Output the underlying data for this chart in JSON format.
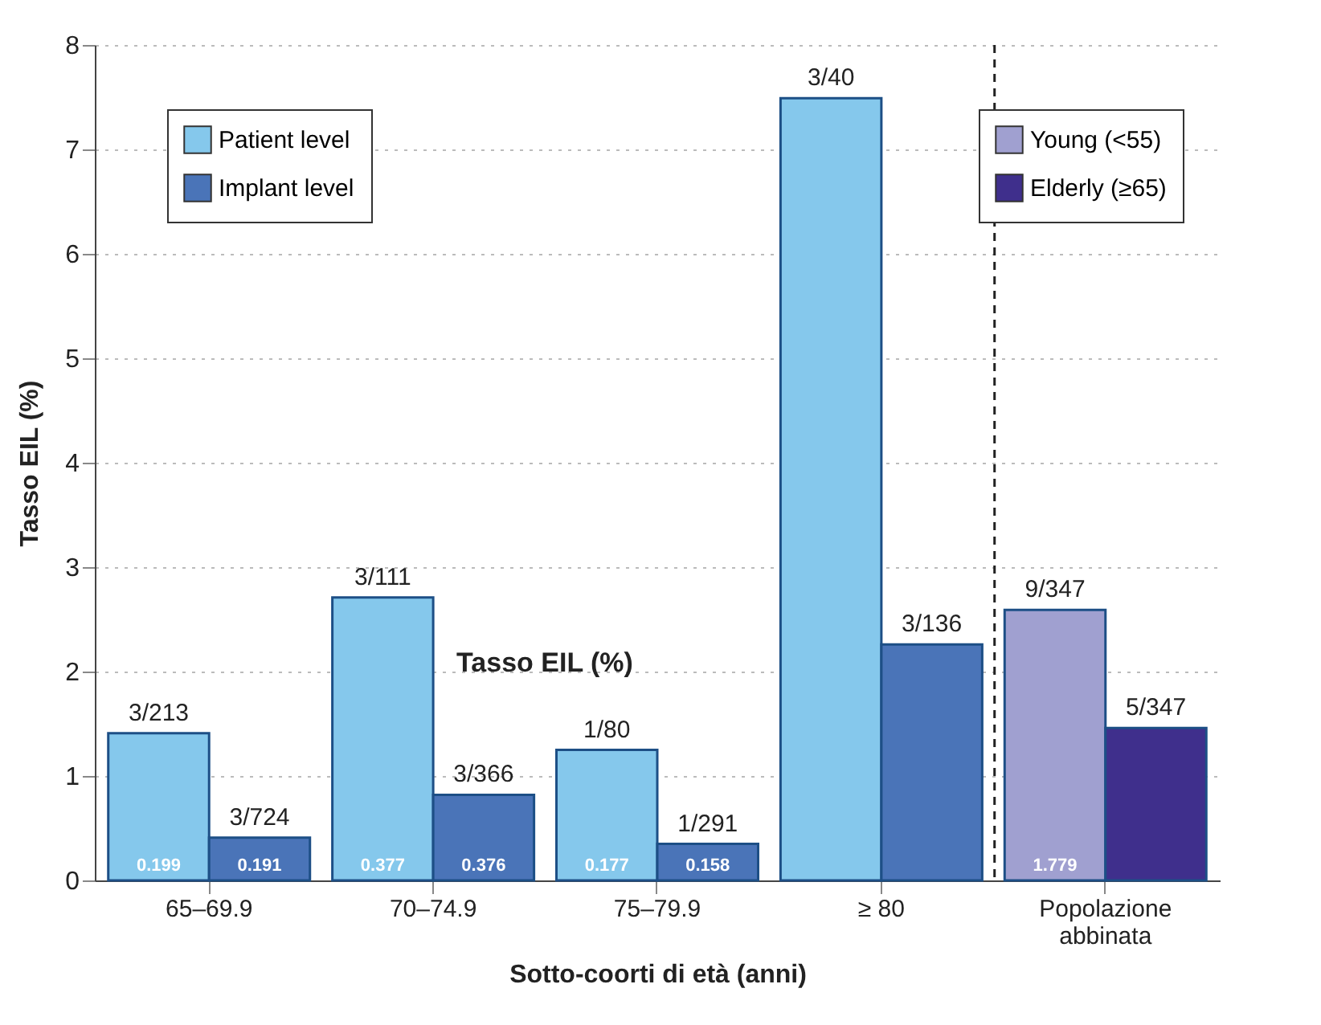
{
  "chart_data": {
    "type": "bar",
    "categories": [
      "65–69.9",
      "70–74.9",
      "75–79.9",
      "≥ 80",
      "Popolazione abbinata"
    ],
    "xlabel": "Sotto-coorti di età (anni)",
    "ylabel": "Tasso EIL (%)",
    "ylim": [
      0,
      8
    ],
    "yticks": [
      0,
      1,
      2,
      3,
      4,
      5,
      6,
      7,
      8
    ],
    "grid": "y",
    "legend": "top left",
    "series": [
      {
        "name": "Patient level",
        "color": "#85c8ec",
        "values": [
          1.41,
          2.71,
          1.25,
          7.49,
          null
        ],
        "value_labels": [
          "3/213",
          "3/111",
          "1/80",
          "3/40",
          null
        ]
      },
      {
        "name": "Implant level",
        "color": "#4a74b8",
        "values": [
          0.41,
          0.82,
          0.35,
          2.26,
          null
        ],
        "value_labels": [
          "3/724",
          "3/366",
          "1/291",
          "3/136",
          null
        ]
      },
      {
        "name": "Young (<55)",
        "color": "#a0a0d0",
        "values": [
          null,
          null,
          null,
          null,
          2.59
        ],
        "value_labels": [
          null,
          null,
          null,
          null,
          "9/347"
        ]
      },
      {
        "name": "Elderly (≥65)",
        "color": "#3f2f8c",
        "values": [
          null,
          null,
          null,
          null,
          1.46
        ],
        "value_labels": [
          null,
          null,
          null,
          null,
          "5/347"
        ]
      }
    ],
    "ref_lines": [
      {
        "axis": "x",
        "value": "Popolazione abbinata",
        "line_style": "dashed",
        "color": "#222222"
      }
    ],
    "annotations": [
      {
        "text": "0.199",
        "x": "65–69.9",
        "y": 0
      },
      {
        "text": "0.191",
        "x": "65–69.9",
        "y": 0
      },
      {
        "text": "0.377",
        "x": "70–74.9",
        "y": 0
      },
      {
        "text": "0.376",
        "x": "70–74.9",
        "y": 0
      },
      {
        "text": "0.177",
        "x": "75–79.9",
        "y": 0
      },
      {
        "text": "0.158",
        "x": "75–79.9",
        "y": 0
      },
      {
        "text": "1.779",
        "x": "Popolazione abbinata",
        "y": 0
      },
      "Tasso EIL (%)"
    ]
  }
}
